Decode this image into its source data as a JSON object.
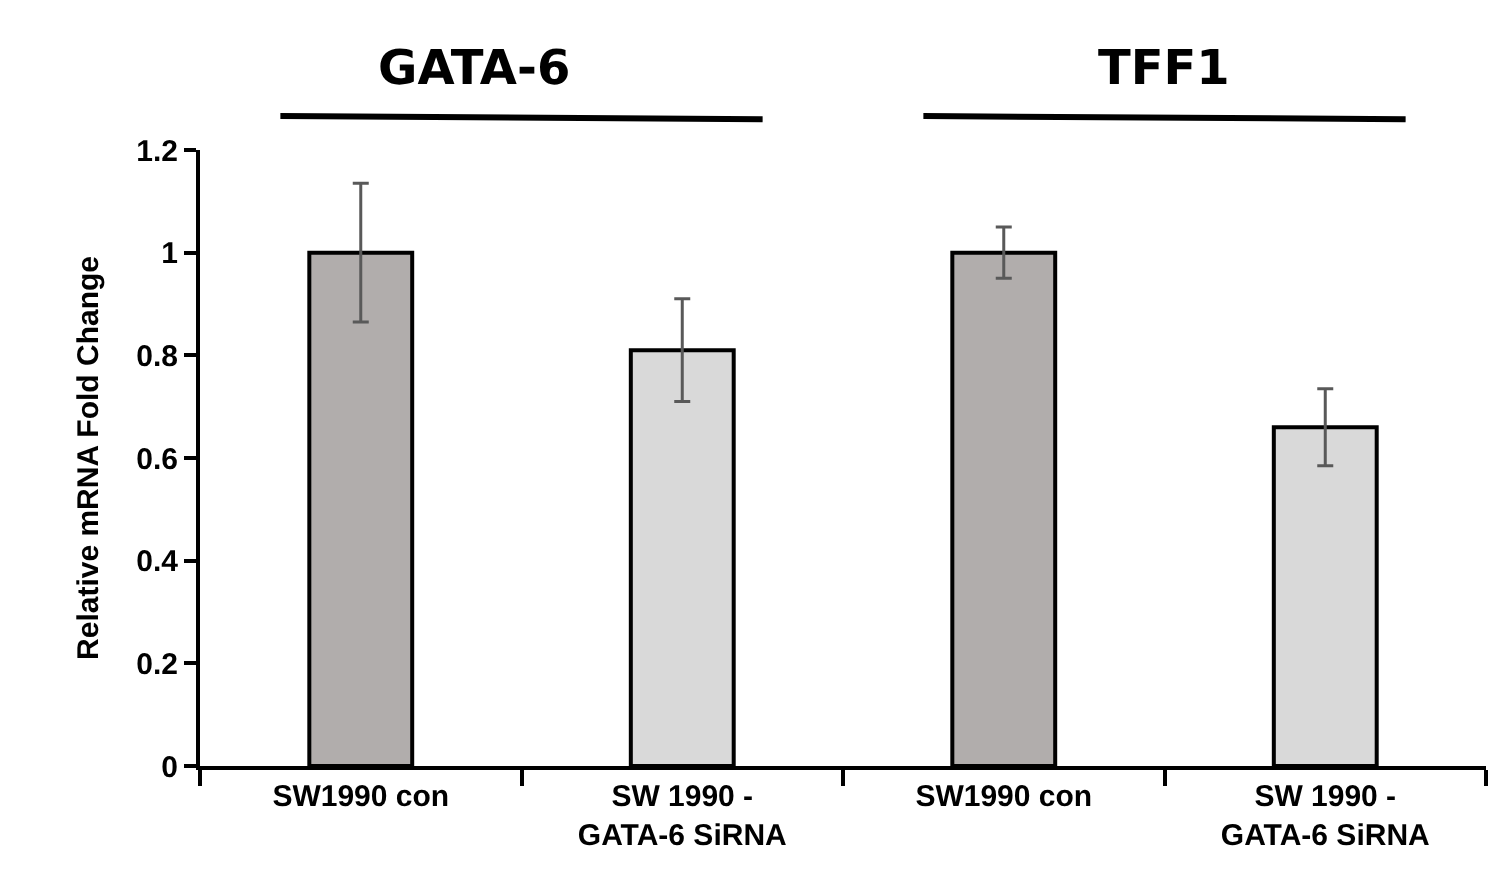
{
  "chart_data": {
    "type": "bar",
    "categories": [
      "SW1990 con",
      "SW 1990 -\nGATA-6 SiRNA",
      "SW1990 con",
      "SW 1990 -\nGATA-6 SiRNA"
    ],
    "values": [
      1,
      0.81,
      1,
      0.66
    ],
    "errors": [
      0.135,
      0.1,
      0.05,
      0.075
    ],
    "colors": [
      "#b1adac",
      "#d9d9d9",
      "#b1adac",
      "#d9d9d9"
    ],
    "ylabel": "Relative mRNA Fold Change",
    "ylim": [
      0,
      1.2
    ],
    "yticks": [
      0,
      0.2,
      0.4,
      0.6,
      0.8,
      1,
      1.2
    ],
    "annotations": [
      "GATA-6",
      "TFF1"
    ]
  }
}
